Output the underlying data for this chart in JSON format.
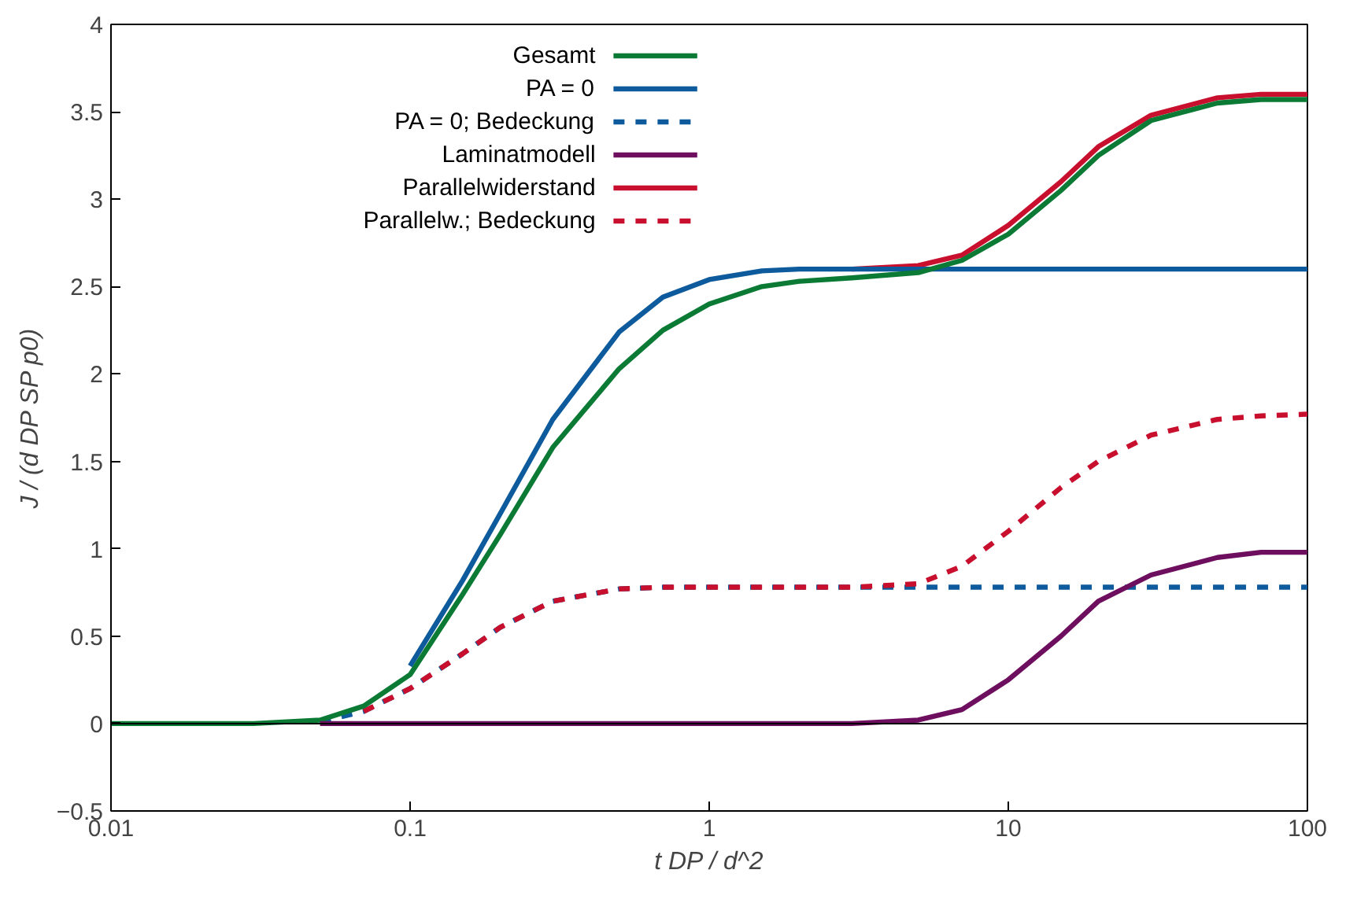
{
  "chart_data": {
    "type": "line",
    "xlabel": "t DP / d^2",
    "ylabel": "J / (d DP SP p0)",
    "log": "x",
    "grid": false,
    "legend": "top left",
    "xlim": [
      0.01,
      100
    ],
    "ylim": [
      -0.5,
      4
    ],
    "xticks": [
      0.01,
      0.1,
      1,
      10,
      100
    ],
    "yticks": [
      {
        "value": -0.5,
        "label": "−0.5"
      },
      0,
      0.5,
      1,
      1.5,
      2,
      2.5,
      3,
      3.5,
      4
    ],
    "ref_lines": [
      {
        "axis": "y",
        "value": 0,
        "color": "#000000"
      }
    ],
    "series": [
      {
        "name": "Gesamt",
        "color": "#0b7a35",
        "line_style": "solid",
        "x": [
          0.01,
          0.03,
          0.05,
          0.07,
          0.1,
          0.15,
          0.2,
          0.3,
          0.5,
          0.7,
          1,
          1.5,
          2,
          3,
          5,
          7,
          10,
          15,
          20,
          30,
          50,
          70,
          100
        ],
        "values": [
          0,
          0,
          0.02,
          0.1,
          0.28,
          0.74,
          1.08,
          1.58,
          2.03,
          2.25,
          2.4,
          2.5,
          2.53,
          2.55,
          2.58,
          2.65,
          2.8,
          3.05,
          3.25,
          3.45,
          3.55,
          3.57,
          3.57
        ]
      },
      {
        "name": "PA = 0",
        "color": "#0d5a9c",
        "line_style": "solid",
        "x": [
          0.1,
          0.15,
          0.2,
          0.3,
          0.5,
          0.7,
          1,
          1.5,
          2,
          100
        ],
        "values": [
          0.33,
          0.82,
          1.2,
          1.74,
          2.24,
          2.44,
          2.54,
          2.59,
          2.6,
          2.6
        ]
      },
      {
        "name": "PA = 0; Bedeckung",
        "color": "#0d5a9c",
        "line_style": "dashed",
        "x": [
          0.05,
          0.07,
          0.1,
          0.15,
          0.2,
          0.3,
          0.5,
          0.7,
          1,
          100
        ],
        "values": [
          0.01,
          0.07,
          0.2,
          0.4,
          0.55,
          0.7,
          0.77,
          0.78,
          0.78,
          0.78
        ]
      },
      {
        "name": "Laminatmodell",
        "color": "#6e0e5e",
        "line_style": "solid",
        "x": [
          0.05,
          3,
          5,
          7,
          10,
          15,
          20,
          30,
          50,
          70,
          100
        ],
        "values": [
          0,
          0,
          0.02,
          0.08,
          0.25,
          0.5,
          0.7,
          0.85,
          0.95,
          0.98,
          0.98
        ]
      },
      {
        "name": "Parallelwiderstand",
        "color": "#c8102e",
        "line_style": "solid",
        "x": [
          3,
          5,
          7,
          10,
          15,
          20,
          30,
          50,
          70,
          100
        ],
        "values": [
          2.6,
          2.62,
          2.68,
          2.85,
          3.1,
          3.3,
          3.48,
          3.58,
          3.6,
          3.6
        ]
      },
      {
        "name": "Parallelw.; Bedeckung",
        "color": "#c8102e",
        "line_style": "dotted",
        "x": [
          0.07,
          0.1,
          0.15,
          0.2,
          0.3,
          0.5,
          0.7,
          1,
          3,
          5,
          7,
          10,
          15,
          20,
          30,
          50,
          70,
          100
        ],
        "values": [
          0.07,
          0.2,
          0.4,
          0.55,
          0.7,
          0.77,
          0.78,
          0.78,
          0.78,
          0.8,
          0.9,
          1.1,
          1.35,
          1.5,
          1.65,
          1.74,
          1.76,
          1.77
        ]
      }
    ]
  }
}
